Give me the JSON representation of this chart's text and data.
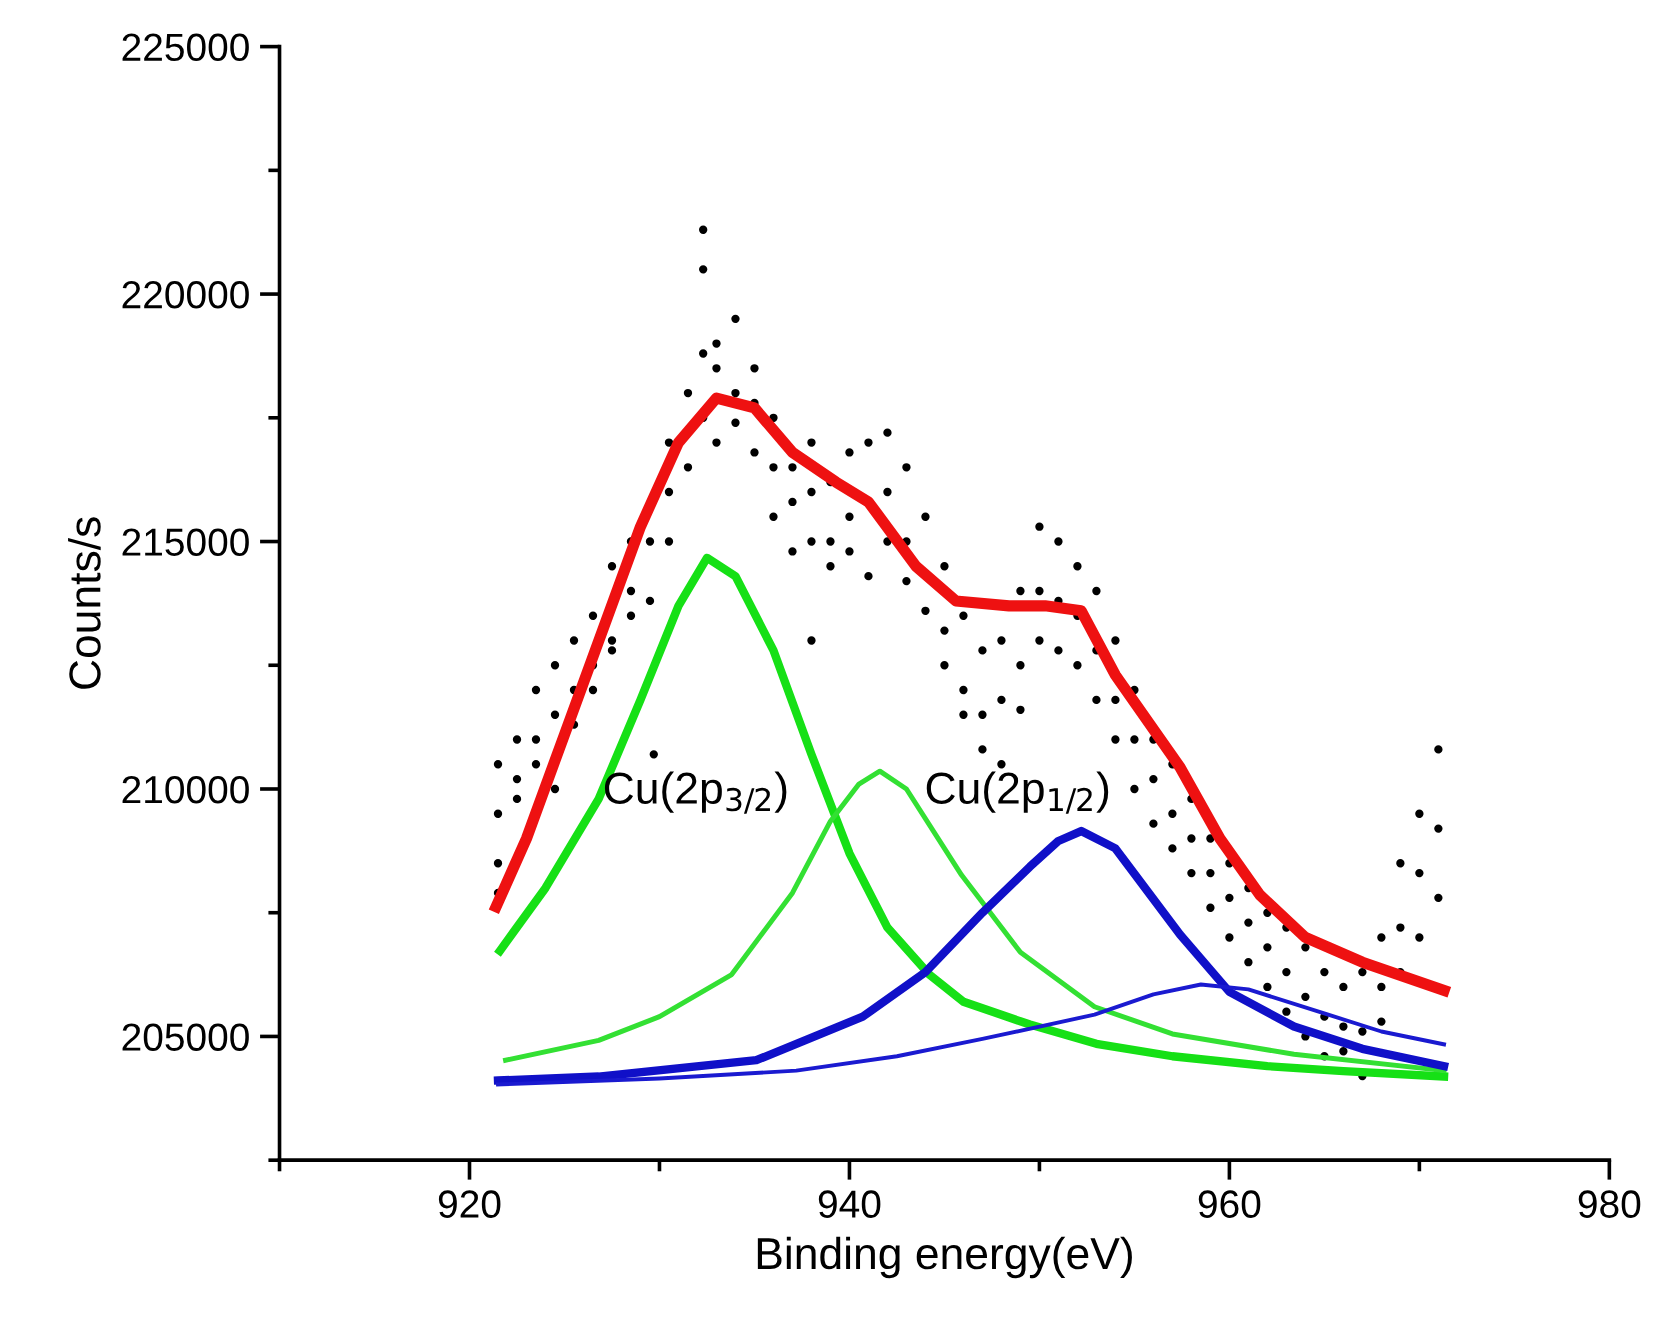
{
  "chart_data": {
    "type": "line",
    "xlabel": "Binding energy(eV)",
    "ylabel": "Counts/s",
    "xlim": [
      910,
      980
    ],
    "ylim": [
      202500,
      225000
    ],
    "xticks": [
      {
        "value": 910,
        "label": null
      },
      920,
      {
        "value": 930,
        "label": null
      },
      940,
      {
        "value": 950,
        "label": null
      },
      960,
      {
        "value": 970,
        "label": null
      },
      980
    ],
    "yticks": [
      {
        "value": 202500,
        "label": null
      },
      205000,
      {
        "value": 207500,
        "label": null
      },
      210000,
      {
        "value": 212500,
        "label": null
      },
      215000,
      {
        "value": 217500,
        "label": null
      },
      220000,
      {
        "value": 222500,
        "label": null
      },
      225000
    ],
    "grid": false,
    "annotations": [
      "Cu(2p$_{3/2}$)",
      "Cu(2p$_{1/2}$)"
    ],
    "series": [
      {
        "type": "scatter",
        "marker": "circle",
        "color": "#000000",
        "x": [
          921.5,
          921.5,
          921.5,
          921.5,
          922.5,
          922.5,
          922.5,
          923.5,
          923.5,
          923.5,
          924.5,
          924.5,
          924.5,
          925.5,
          925.5,
          925.5,
          926.5,
          926.5,
          926.5,
          927.5,
          927.5,
          927.5,
          928.5,
          928.5,
          928.5,
          929.5,
          929.5,
          929.7,
          930.5,
          930.5,
          930.5,
          931.5,
          931.5,
          932.3,
          932.3,
          932.3,
          932.3,
          933,
          933,
          933,
          934,
          934,
          934,
          935,
          935,
          935,
          936,
          936,
          936,
          937,
          937,
          937,
          938,
          938,
          938,
          938,
          939,
          939,
          939,
          940,
          940,
          940,
          941,
          941,
          942,
          942,
          942,
          943,
          943,
          943,
          944,
          944,
          945,
          945,
          945,
          946,
          946,
          946,
          947,
          947,
          947,
          948,
          948,
          948,
          949,
          949,
          949,
          950,
          950,
          950,
          951,
          951,
          951,
          952,
          952,
          952,
          953,
          953,
          953,
          954,
          954,
          954,
          955,
          955,
          955,
          956,
          956,
          956,
          957,
          957,
          957,
          958,
          958,
          958,
          959,
          959,
          959,
          960,
          960,
          960,
          961,
          961,
          961,
          962,
          962,
          962,
          963,
          963,
          963,
          964,
          964,
          964,
          965,
          965,
          965,
          966,
          966,
          966,
          967,
          967,
          967,
          968,
          968,
          968,
          969,
          969,
          969,
          970,
          970,
          970,
          971,
          971,
          971
        ],
        "values": [
          208500,
          210500,
          209500,
          207900,
          211000,
          209800,
          210200,
          210500,
          212000,
          211000,
          211500,
          210000,
          212500,
          212000,
          213000,
          211300,
          212500,
          213500,
          212000,
          213000,
          214500,
          212800,
          214000,
          215000,
          213500,
          215000,
          213800,
          210700,
          216000,
          217000,
          215000,
          218000,
          216500,
          221300,
          220500,
          218800,
          217500,
          218500,
          217000,
          219000,
          219500,
          218000,
          217400,
          218500,
          217800,
          216800,
          217500,
          216500,
          215500,
          216500,
          215800,
          214800,
          217000,
          216000,
          215000,
          213000,
          216200,
          215000,
          214500,
          216800,
          215500,
          214800,
          217000,
          214300,
          217200,
          216000,
          215000,
          216500,
          215000,
          214200,
          215500,
          213600,
          214500,
          213200,
          212500,
          213500,
          212000,
          211500,
          212800,
          211500,
          210800,
          213000,
          211800,
          210500,
          214000,
          212500,
          211600,
          215300,
          214000,
          213000,
          215000,
          213800,
          212800,
          214500,
          213500,
          212500,
          214000,
          212800,
          211800,
          213000,
          211800,
          211000,
          212000,
          211000,
          210000,
          211000,
          210200,
          209300,
          210500,
          209500,
          208800,
          209800,
          209000,
          208300,
          209000,
          208300,
          207600,
          208500,
          207800,
          207000,
          208000,
          207300,
          206500,
          207500,
          206800,
          206000,
          207200,
          206300,
          205500,
          206800,
          205800,
          205000,
          206300,
          205400,
          204600,
          206000,
          205200,
          204700,
          206300,
          205100,
          204200,
          207000,
          206000,
          205300,
          208500,
          207200,
          206300,
          209500,
          208300,
          207000,
          210800,
          209200,
          207800
        ]
      },
      {
        "color": "#16e016",
        "x": [
          921.6,
          924,
          926.8,
          929,
          931,
          932.5,
          934,
          936,
          938,
          940,
          942,
          944.2,
          946,
          949.5,
          953,
          957,
          962,
          966,
          971.3
        ],
        "values": [
          206730,
          208000,
          209800,
          211800,
          213700,
          214670,
          214300,
          212800,
          210700,
          208700,
          207200,
          206250,
          205700,
          205240,
          204850,
          204600,
          204400,
          204300,
          204190
        ]
      },
      {
        "color": "#33e033",
        "x": [
          921.9,
          926.8,
          930,
          933.8,
          937,
          939,
          940.5,
          941.6,
          943,
          945.9,
          949,
          952.9,
          957,
          963.4,
          971.3
        ],
        "values": [
          204520,
          204920,
          205400,
          206250,
          207900,
          209350,
          210100,
          210360,
          210000,
          208260,
          206700,
          205600,
          205050,
          204640,
          204310
        ]
      },
      {
        "color": "#1010c8",
        "x": [
          921.5,
          926.8,
          935.1,
          940.7,
          944,
          947,
          949.5,
          951,
          952.2,
          954,
          957.4,
          960,
          963.4,
          967,
          971.3
        ],
        "values": [
          204110,
          204190,
          204520,
          205400,
          206300,
          207500,
          208430,
          208950,
          209150,
          208800,
          207060,
          205900,
          205200,
          204750,
          204400
        ]
      },
      {
        "color": "#1a1ad0",
        "x": [
          921.5,
          930,
          937.2,
          942.5,
          947,
          952.9,
          956,
          958.5,
          961,
          965.2,
          968,
          971.3
        ],
        "values": [
          204030,
          204150,
          204310,
          204600,
          204950,
          205440,
          205850,
          206050,
          205950,
          205440,
          205100,
          204840
        ]
      },
      {
        "color": "#ee1111",
        "x": [
          921.4,
          923,
          925,
          927,
          929,
          931,
          933,
          935,
          937,
          939.3,
          941,
          943.5,
          945.6,
          948.4,
          950.3,
          952.2,
          954,
          957.4,
          959.5,
          961.6,
          964,
          967,
          971.3
        ],
        "values": [
          207620,
          209000,
          211100,
          213200,
          215300,
          217000,
          217900,
          217700,
          216800,
          216200,
          215800,
          214500,
          213800,
          213700,
          213700,
          213600,
          212300,
          210440,
          209000,
          207860,
          207000,
          206500,
          205930
        ]
      }
    ]
  }
}
